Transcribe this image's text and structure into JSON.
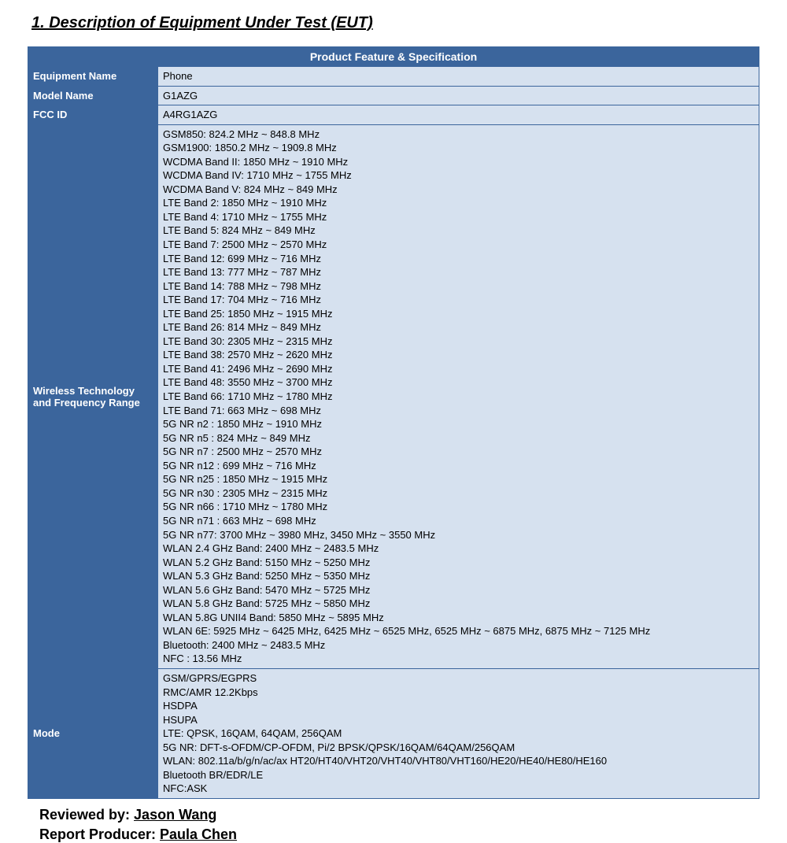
{
  "section_title": "1.   Description of Equipment Under Test (EUT)",
  "table_header": "Product Feature & Specification",
  "rows": {
    "equipment_name": {
      "label": "Equipment Name",
      "value": "Phone"
    },
    "model_name": {
      "label": "Model Name",
      "value": "G1AZG"
    },
    "fcc_id": {
      "label": "FCC ID",
      "value": "A4RG1AZG"
    },
    "wireless": {
      "label": "Wireless Technology and Frequency Range",
      "lines": [
        "GSM850: 824.2 MHz ~ 848.8 MHz",
        "GSM1900: 1850.2 MHz ~ 1909.8 MHz",
        "WCDMA Band II: 1850 MHz ~ 1910 MHz",
        "WCDMA Band IV: 1710 MHz ~ 1755 MHz",
        "WCDMA Band V: 824 MHz ~ 849 MHz",
        "LTE Band 2: 1850 MHz ~ 1910 MHz",
        "LTE Band 4: 1710 MHz ~ 1755 MHz",
        "LTE Band 5: 824 MHz ~ 849 MHz",
        "LTE Band 7: 2500 MHz ~ 2570 MHz",
        "LTE Band 12: 699 MHz ~ 716 MHz",
        "LTE Band 13: 777 MHz ~ 787 MHz",
        "LTE Band 14: 788 MHz ~ 798 MHz",
        "LTE Band 17: 704 MHz ~ 716 MHz",
        "LTE Band 25: 1850 MHz ~ 1915 MHz",
        "LTE Band 26: 814 MHz ~ 849 MHz",
        "LTE Band 30: 2305 MHz ~ 2315 MHz",
        "LTE Band 38: 2570 MHz ~ 2620 MHz",
        "LTE Band 41: 2496 MHz ~ 2690 MHz",
        "LTE Band 48: 3550 MHz ~ 3700 MHz",
        "LTE Band 66: 1710 MHz ~ 1780 MHz",
        "LTE Band 71: 663 MHz ~ 698 MHz",
        "5G NR n2 : 1850 MHz ~ 1910 MHz",
        "5G NR n5 : 824 MHz ~ 849 MHz",
        "5G NR n7 : 2500 MHz ~ 2570 MHz",
        "5G NR n12 : 699 MHz ~ 716 MHz",
        "5G NR n25 : 1850 MHz ~ 1915 MHz",
        "5G NR n30 : 2305 MHz ~ 2315 MHz",
        "5G NR n66 : 1710 MHz ~ 1780 MHz",
        "5G NR n71 : 663 MHz ~ 698 MHz",
        "5G NR n77: 3700 MHz ~ 3980 MHz, 3450 MHz ~ 3550 MHz",
        "WLAN 2.4 GHz Band: 2400 MHz ~ 2483.5 MHz",
        "WLAN 5.2 GHz Band: 5150 MHz ~ 5250 MHz",
        "WLAN 5.3 GHz Band: 5250 MHz ~ 5350 MHz",
        "WLAN 5.6 GHz Band: 5470 MHz ~ 5725 MHz",
        "WLAN 5.8 GHz Band: 5725 MHz ~ 5850 MHz",
        "WLAN 5.8G UNII4 Band: 5850 MHz ~ 5895 MHz",
        "WLAN 6E: 5925 MHz ~ 6425 MHz, 6425 MHz ~ 6525 MHz, 6525 MHz ~ 6875 MHz, 6875 MHz ~ 7125 MHz",
        "Bluetooth: 2400 MHz ~ 2483.5 MHz",
        "NFC : 13.56 MHz"
      ]
    },
    "mode": {
      "label": "Mode",
      "lines": [
        "GSM/GPRS/EGPRS",
        "RMC/AMR 12.2Kbps",
        "HSDPA",
        "HSUPA",
        "LTE: QPSK, 16QAM, 64QAM, 256QAM",
        "5G NR: DFT-s-OFDM/CP-OFDM, Pi/2 BPSK/QPSK/16QAM/64QAM/256QAM",
        "WLAN: 802.11a/b/g/n/ac/ax HT20/HT40/VHT20/VHT40/VHT80/VHT160/HE20/HE40/HE80/HE160",
        "Bluetooth BR/EDR/LE",
        "NFC:ASK"
      ]
    }
  },
  "footer": {
    "reviewed_label": "Reviewed by: ",
    "reviewed_name": "Jason Wang",
    "producer_label": "Report Producer: ",
    "producer_name": "Paula Chen"
  },
  "colors": {
    "header_bg": "#3b659c",
    "header_fg": "#ffffff",
    "value_bg": "#d6e1ef",
    "border": "#3b659c"
  }
}
